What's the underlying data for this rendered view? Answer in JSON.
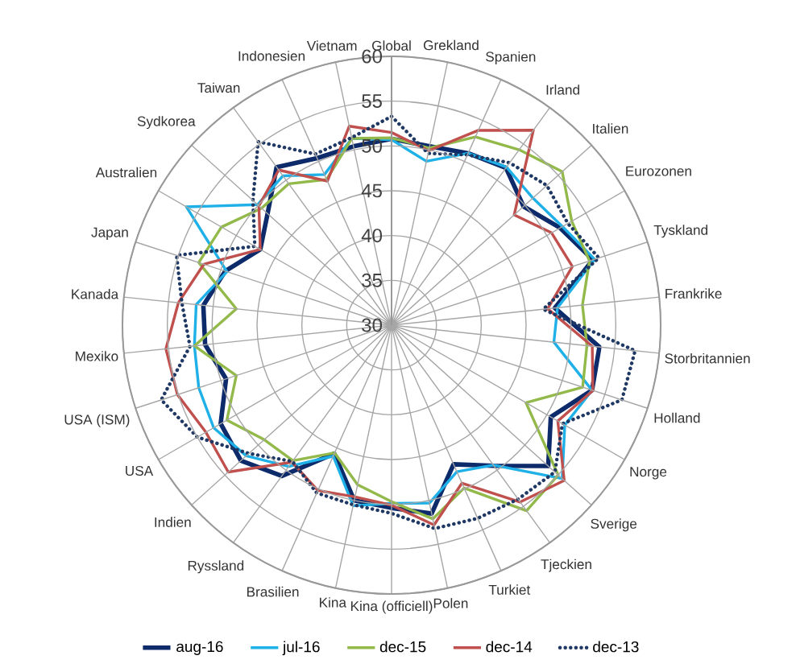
{
  "chart_data": {
    "type": "radar",
    "categories": [
      "Global",
      "Grekland",
      "Spanien",
      "Irland",
      "Italien",
      "Eurozonen",
      "Tyskland",
      "Frankrike",
      "Storbritannien",
      "Holland",
      "Norge",
      "Sverige",
      "Tjeckien",
      "Turkiet",
      "Polen",
      "Kina (officiell)",
      "Kina",
      "Brasilien",
      "Ryssland",
      "Indien",
      "USA",
      "USA (ISM)",
      "Mexiko",
      "Kanada",
      "Japan",
      "Australien",
      "Sydkorea",
      "Taiwan",
      "Indonesien",
      "Vietnam"
    ],
    "series": [
      {
        "name": "aug-16",
        "color": "#0d2a6a",
        "line_style": "solid",
        "values": [
          50.8,
          50.4,
          51.0,
          51.7,
          49.8,
          51.7,
          53.6,
          48.3,
          53.3,
          53.5,
          50.5,
          53.5,
          49.4,
          47.0,
          51.5,
          50.4,
          50.0,
          45.7,
          50.8,
          52.6,
          52.0,
          49.4,
          50.9,
          51.1,
          49.5,
          46.9,
          48.6,
          51.8,
          50.4,
          50.4
        ]
      },
      {
        "name": "jul-16",
        "color": "#1eb0e6",
        "line_style": "solid",
        "values": [
          50.7,
          48.7,
          51.0,
          51.8,
          51.2,
          52.0,
          53.8,
          48.6,
          48.2,
          53.5,
          52.3,
          55.6,
          49.3,
          47.9,
          50.3,
          49.9,
          50.6,
          46.0,
          49.5,
          51.8,
          52.9,
          52.6,
          52.1,
          51.9,
          49.3,
          56.4,
          50.1,
          50.6,
          48.4,
          51.3
        ]
      },
      {
        "name": "dec-15",
        "color": "#92b94a",
        "line_style": "solid",
        "values": [
          50.9,
          50.2,
          53.0,
          54.2,
          55.6,
          53.2,
          53.2,
          51.4,
          51.9,
          52.4,
          47.3,
          55.0,
          55.6,
          49.9,
          52.1,
          49.7,
          48.2,
          45.6,
          48.7,
          49.1,
          51.2,
          48.2,
          52.1,
          47.4,
          52.6,
          51.9,
          49.5,
          49.5,
          47.8,
          51.3
        ]
      },
      {
        "name": "dec-14",
        "color": "#c0504d",
        "line_style": "solid",
        "values": [
          51.5,
          49.9,
          53.8,
          56.9,
          48.4,
          50.6,
          51.2,
          47.5,
          52.5,
          53.6,
          51.4,
          55.9,
          54.4,
          49.3,
          52.8,
          50.1,
          49.6,
          50.2,
          48.9,
          54.5,
          53.9,
          55.1,
          55.3,
          53.9,
          52.0,
          46.9,
          49.9,
          51.4,
          47.6,
          52.7
        ]
      },
      {
        "name": "dec-13",
        "color": "#1f3864",
        "line_style": "dotted",
        "values": [
          53.3,
          49.6,
          50.8,
          52.4,
          53.3,
          52.7,
          54.3,
          47.0,
          57.3,
          57.0,
          52.0,
          54.5,
          54.0,
          53.6,
          53.2,
          51.0,
          50.5,
          50.5,
          48.8,
          51.4,
          55.0,
          57.0,
          52.6,
          53.5,
          55.2,
          47.6,
          50.8,
          55.3,
          50.9,
          51.4
        ]
      }
    ],
    "ylim": [
      30,
      60
    ],
    "yticks": [
      30,
      35,
      40,
      45,
      50,
      55,
      60
    ],
    "grid": true,
    "legend": "bottom",
    "marker": "none"
  }
}
